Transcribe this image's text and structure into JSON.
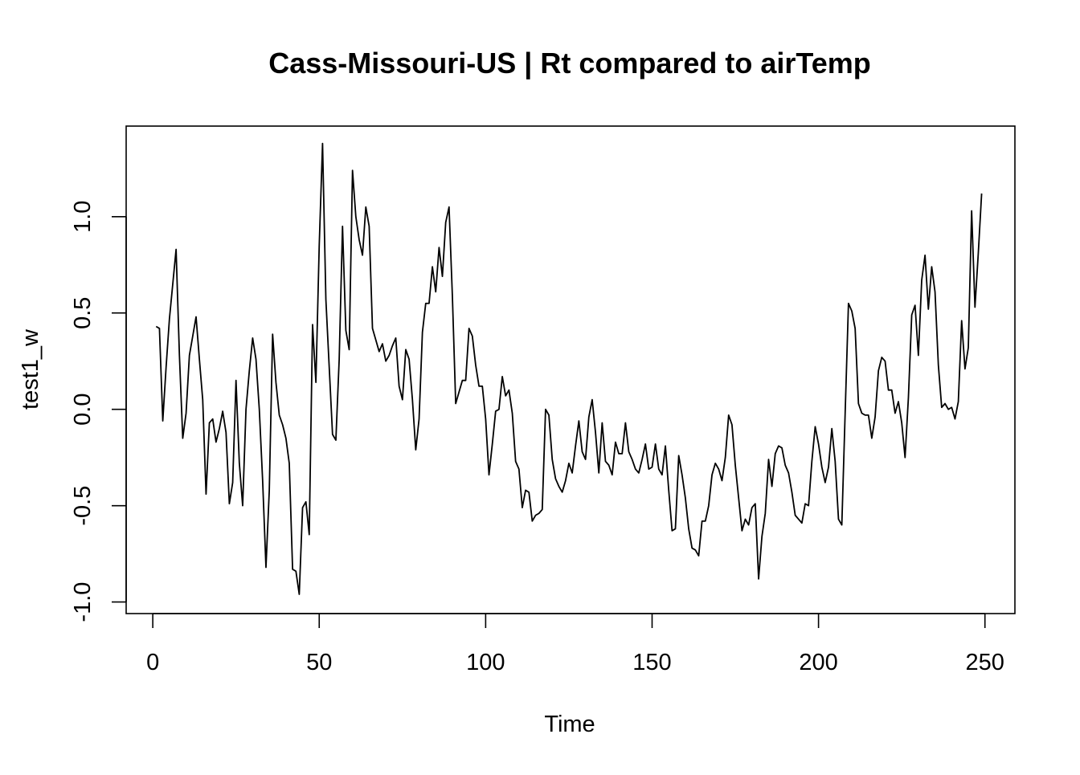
{
  "chart_data": {
    "type": "line",
    "title": "Cass-Missouri-US | Rt compared to airTemp",
    "xlabel": "Time",
    "ylabel": "test1_w",
    "xlim": [
      -8,
      259
    ],
    "ylim": [
      -1.06,
      1.47
    ],
    "xticks": [
      0,
      50,
      100,
      150,
      200,
      250
    ],
    "xtick_labels": [
      "0",
      "50",
      "100",
      "150",
      "200",
      "250"
    ],
    "yticks": [
      -1.0,
      -0.5,
      0.0,
      0.5,
      1.0
    ],
    "ytick_labels": [
      "-1.0",
      "-0.5",
      "0.0",
      "0.5",
      "1.0"
    ],
    "grid": false,
    "legend": "none",
    "line_color": "#000000",
    "series": [
      {
        "x_start": 1,
        "values": [
          0.43,
          0.42,
          -0.06,
          0.22,
          0.47,
          0.65,
          0.83,
          0.28,
          -0.15,
          -0.02,
          0.28,
          0.38,
          0.48,
          0.26,
          0.05,
          -0.44,
          -0.07,
          -0.05,
          -0.17,
          -0.1,
          -0.01,
          -0.12,
          -0.49,
          -0.38,
          0.15,
          -0.28,
          -0.5,
          0.0,
          0.2,
          0.37,
          0.26,
          0.0,
          -0.37,
          -0.82,
          -0.42,
          0.39,
          0.14,
          -0.03,
          -0.08,
          -0.15,
          -0.28,
          -0.83,
          -0.84,
          -0.96,
          -0.51,
          -0.48,
          -0.65,
          0.44,
          0.14,
          0.85,
          1.38,
          0.57,
          0.22,
          -0.13,
          -0.16,
          0.26,
          0.95,
          0.41,
          0.31,
          1.24,
          1.0,
          0.88,
          0.8,
          1.05,
          0.95,
          0.42,
          0.36,
          0.3,
          0.34,
          0.25,
          0.28,
          0.33,
          0.37,
          0.12,
          0.05,
          0.31,
          0.26,
          0.05,
          -0.21,
          -0.05,
          0.4,
          0.55,
          0.55,
          0.74,
          0.61,
          0.84,
          0.69,
          0.97,
          1.05,
          0.59,
          0.03,
          0.09,
          0.15,
          0.15,
          0.42,
          0.38,
          0.23,
          0.12,
          0.12,
          -0.05,
          -0.34,
          -0.18,
          -0.01,
          0.0,
          0.17,
          0.07,
          0.1,
          -0.02,
          -0.27,
          -0.31,
          -0.51,
          -0.42,
          -0.43,
          -0.58,
          -0.55,
          -0.54,
          -0.52,
          0.0,
          -0.03,
          -0.26,
          -0.36,
          -0.4,
          -0.43,
          -0.37,
          -0.28,
          -0.33,
          -0.19,
          -0.06,
          -0.22,
          -0.26,
          -0.04,
          0.05,
          -0.12,
          -0.33,
          -0.07,
          -0.27,
          -0.29,
          -0.34,
          -0.17,
          -0.23,
          -0.23,
          -0.07,
          -0.22,
          -0.26,
          -0.31,
          -0.33,
          -0.26,
          -0.18,
          -0.31,
          -0.3,
          -0.18,
          -0.31,
          -0.34,
          -0.19,
          -0.42,
          -0.63,
          -0.62,
          -0.24,
          -0.34,
          -0.46,
          -0.62,
          -0.72,
          -0.73,
          -0.76,
          -0.58,
          -0.58,
          -0.5,
          -0.34,
          -0.28,
          -0.31,
          -0.37,
          -0.25,
          -0.03,
          -0.08,
          -0.29,
          -0.46,
          -0.63,
          -0.57,
          -0.6,
          -0.51,
          -0.49,
          -0.88,
          -0.66,
          -0.54,
          -0.26,
          -0.4,
          -0.23,
          -0.19,
          -0.2,
          -0.29,
          -0.33,
          -0.43,
          -0.55,
          -0.57,
          -0.59,
          -0.49,
          -0.5,
          -0.27,
          -0.09,
          -0.18,
          -0.3,
          -0.38,
          -0.3,
          -0.1,
          -0.27,
          -0.57,
          -0.6,
          -0.02,
          0.55,
          0.51,
          0.42,
          0.03,
          -0.02,
          -0.03,
          -0.03,
          -0.15,
          -0.04,
          0.2,
          0.27,
          0.25,
          0.1,
          0.1,
          -0.02,
          0.04,
          -0.07,
          -0.25,
          0.06,
          0.49,
          0.54,
          0.28,
          0.67,
          0.8,
          0.52,
          0.74,
          0.61,
          0.23,
          0.01,
          0.03,
          0.0,
          0.01,
          -0.05,
          0.04,
          0.46,
          0.21,
          0.32,
          1.03,
          0.53,
          0.81,
          1.12
        ]
      }
    ]
  }
}
